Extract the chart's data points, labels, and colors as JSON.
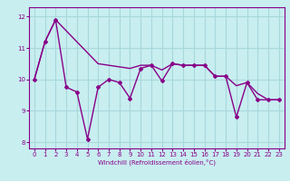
{
  "xlabel": "Windchill (Refroidissement éolien,°C)",
  "background_color": "#c8eef0",
  "grid_color": "#a8d8dc",
  "line_color": "#880088",
  "y_zigzag": [
    10.0,
    11.2,
    11.9,
    9.75,
    9.6,
    8.1,
    9.75,
    10.0,
    9.9,
    9.4,
    10.35,
    10.45,
    9.95,
    10.5,
    10.45,
    10.45,
    10.45,
    10.1,
    10.1,
    8.8,
    9.9,
    9.35,
    9.35,
    9.35
  ],
  "y_smooth": [
    10.0,
    11.2,
    11.9,
    11.55,
    11.2,
    10.85,
    10.5,
    10.45,
    10.4,
    10.35,
    10.45,
    10.45,
    10.3,
    10.5,
    10.45,
    10.45,
    10.45,
    10.1,
    10.1,
    9.8,
    9.9,
    9.55,
    9.35,
    9.35
  ],
  "ylim": [
    7.8,
    12.3
  ],
  "xlim": [
    -0.5,
    23.5
  ],
  "yticks": [
    8,
    9,
    10,
    11,
    12
  ],
  "xticks": [
    0,
    1,
    2,
    3,
    4,
    5,
    6,
    7,
    8,
    9,
    10,
    11,
    12,
    13,
    14,
    15,
    16,
    17,
    18,
    19,
    20,
    21,
    22,
    23
  ]
}
